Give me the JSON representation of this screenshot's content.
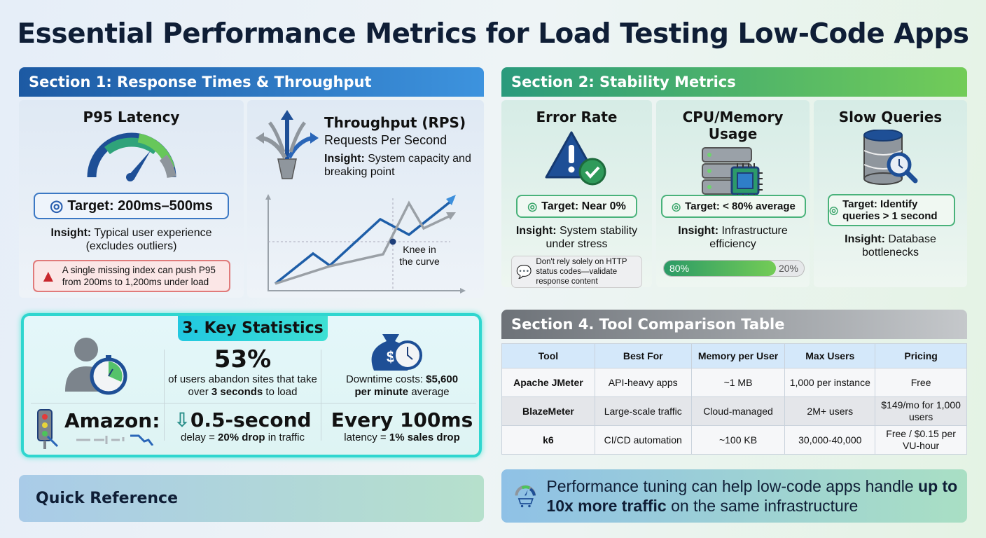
{
  "title": "Essential Performance Metrics for Load Testing Low-Code Apps",
  "section1": {
    "header": "Section 1: Response Times & Throughput",
    "p95": {
      "title": "P95 Latency",
      "target": "Target: 200ms–500ms",
      "insight_label": "Insight:",
      "insight": "Typical user experience (excludes outliers)",
      "warning": "A single missing index can push P95 from 200ms to 1,200ms under load"
    },
    "throughput": {
      "title": "Throughput (RPS)",
      "subtitle": "Requests Per Second",
      "insight_label": "Insight:",
      "insight": "System capacity and breaking point",
      "knee_label": "Knee in the curve"
    }
  },
  "section2": {
    "header": "Section 2: Stability Metrics",
    "error": {
      "title": "Error Rate",
      "target": "Target: Near 0%",
      "insight_label": "Insight:",
      "insight": "System stability under stress",
      "tip": "Don't rely solely on HTTP status codes—validate response content"
    },
    "cpu": {
      "title": "CPU/Memory Usage",
      "target": "Target: < 80% average",
      "insight_label": "Insight:",
      "insight": "Infrastructure efficiency",
      "bar_used_label": "80%",
      "bar_free_label": "20%",
      "bar_used_percent": 80
    },
    "slow": {
      "title": "Slow Queries",
      "target": "Target: Identify queries > 1 second",
      "insight_label": "Insight:",
      "insight": "Database bottlenecks"
    }
  },
  "section3": {
    "header": "3. Key Statistics",
    "abandon": {
      "value": "53%",
      "text_a": "of users abandon sites that take over ",
      "bold": "3 seconds",
      "text_b": " to load"
    },
    "downtime": {
      "text": "Downtime costs: ",
      "bold_a": "$5,600",
      "bold_b": "per minute",
      "text_b": " average"
    },
    "amazon": {
      "label": "Amazon:"
    },
    "delay": {
      "value": "0.5-second",
      "text_a": "delay = ",
      "bold": "20% drop",
      "text_b": " in traffic"
    },
    "latency": {
      "value": "Every 100ms",
      "text_a": "latency = ",
      "bold": "1% sales drop"
    }
  },
  "quick_reference": "Quick Reference",
  "section4": {
    "header": "Section 4. Tool Comparison Table",
    "columns": [
      "Tool",
      "Best For",
      "Memory per User",
      "Max Users",
      "Pricing"
    ],
    "rows": [
      [
        "Apache JMeter",
        "API-heavy apps",
        "~1 MB",
        "1,000 per instance",
        "Free"
      ],
      [
        "BlazeMeter",
        "Large-scale traffic",
        "Cloud-managed",
        "2M+ users",
        "$149/mo for 1,000 users"
      ],
      [
        "k6",
        "CI/CD automation",
        "~100 KB",
        "30,000-40,000",
        "Free / $0.15 per VU-hour"
      ]
    ]
  },
  "banner": {
    "text_a": "Performance tuning can help low-code apps handle ",
    "bold": "up to 10x more traffic",
    "text_b": " on the same infrastructure"
  },
  "colors": {
    "section1": "#2a72c4",
    "section2": "#3fae6e",
    "section4": "#7a7f86",
    "accent_cyan": "#22d3d8"
  }
}
